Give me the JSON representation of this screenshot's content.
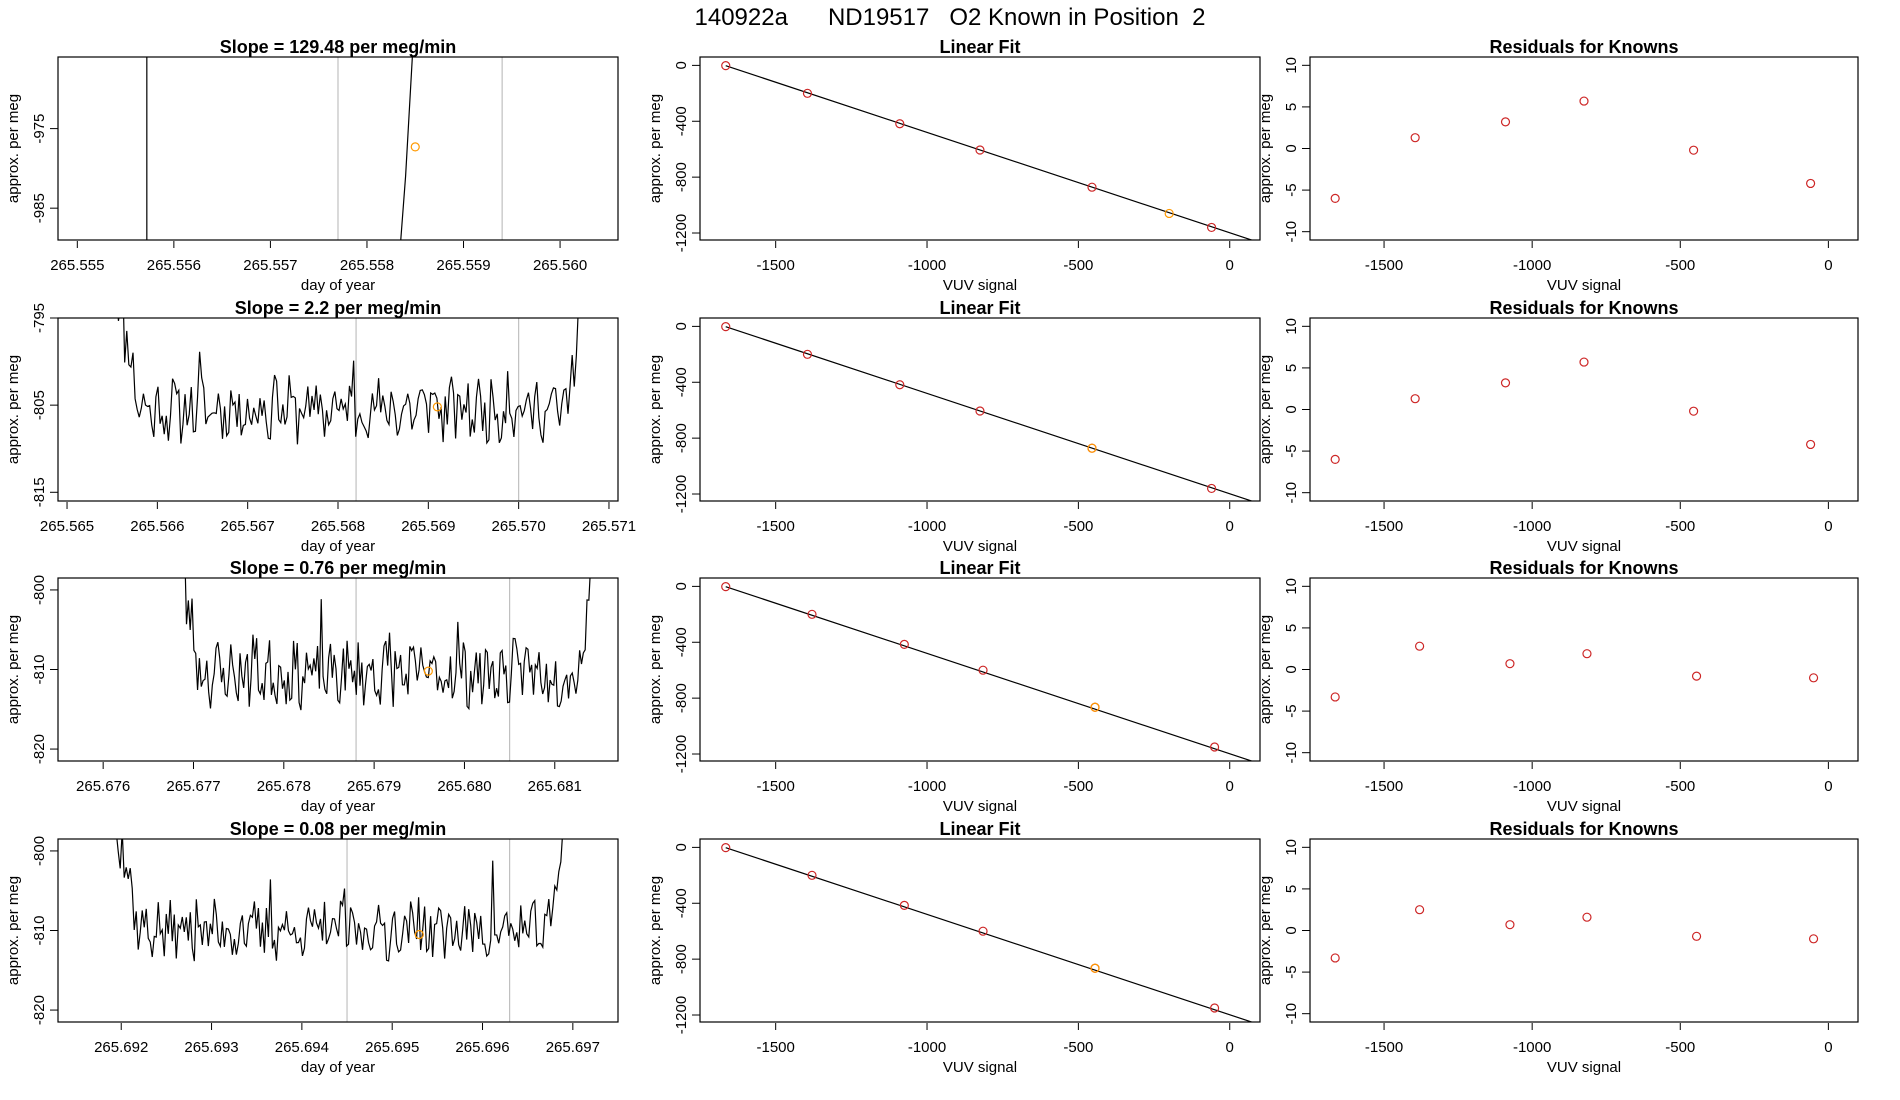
{
  "title": "140922a      ND19517   O2 Known in Position  2",
  "colors": {
    "line": "#000000",
    "known_point": "#cd2626",
    "sample_point": "#ff9900",
    "marker_line": "#c0c0c0"
  },
  "chart_data": [
    {
      "type": "line",
      "row": 0,
      "panel": "time",
      "title": "Slope =  129.48  per meg/min",
      "xlabel": "day of year",
      "ylabel": "approx. per meg",
      "xlim": [
        265.5548,
        265.5606
      ],
      "ylim": [
        -989,
        -966
      ],
      "xticks": [
        "265.555",
        "265.556",
        "265.557",
        "265.558",
        "265.559",
        "265.560"
      ],
      "yticks": [
        "-975",
        "-985"
      ],
      "vlines": [
        265.5577,
        265.5594
      ],
      "highlight_point": [
        265.5585,
        -977.3
      ],
      "segments": [
        [
          [
            265.55572,
            -989
          ],
          [
            265.55572,
            -966
          ]
        ],
        [
          [
            265.55835,
            -989
          ],
          [
            265.5584,
            -981
          ],
          [
            265.55847,
            -966
          ]
        ]
      ]
    },
    {
      "type": "scatter",
      "row": 0,
      "panel": "fit",
      "title": "Linear Fit",
      "xlabel": "VUV signal",
      "ylabel": "approx. per meg",
      "xlim": [
        -1750,
        100
      ],
      "ylim": [
        -1250,
        60
      ],
      "xticks": [
        "-1500",
        "-1000",
        "-500",
        "0"
      ],
      "yticks": [
        "0",
        "-400",
        "-800",
        "-1200"
      ],
      "fit_line": [
        [
          -1665,
          -2
        ],
        [
          100,
          -1270
        ]
      ],
      "points": [
        [
          -1665,
          -2
        ],
        [
          -1395,
          -200
        ],
        [
          -1090,
          -418
        ],
        [
          -825,
          -606
        ],
        [
          -455,
          -872
        ],
        [
          -60,
          -1160
        ]
      ],
      "highlight_point": [
        -200,
        -1060
      ]
    },
    {
      "type": "scatter",
      "row": 0,
      "panel": "residuals",
      "title": "Residuals for Knowns",
      "xlabel": "VUV signal",
      "ylabel": "approx. per meg",
      "xlim": [
        -1750,
        100
      ],
      "ylim": [
        -11,
        11
      ],
      "xticks": [
        "-1500",
        "-1000",
        "-500",
        "0"
      ],
      "yticks": [
        "10",
        "5",
        "0",
        "-5",
        "-10"
      ],
      "points": [
        [
          -1665,
          -6
        ],
        [
          -1395,
          1.3
        ],
        [
          -1090,
          3.2
        ],
        [
          -825,
          5.7
        ],
        [
          -455,
          -0.2
        ],
        [
          -60,
          -4.2
        ]
      ]
    },
    {
      "type": "line",
      "row": 1,
      "panel": "time",
      "title": "Slope =  2.2  per meg/min",
      "xlabel": "day of year",
      "ylabel": "approx. per meg",
      "xlim": [
        265.5649,
        265.5711
      ],
      "ylim": [
        -816,
        -795
      ],
      "xticks": [
        "265.565",
        "265.566",
        "265.567",
        "265.568",
        "265.569",
        "265.570",
        "265.571"
      ],
      "yticks": [
        "-795",
        "-805",
        "-815"
      ],
      "vlines": [
        265.5682,
        265.57
      ],
      "highlight_point": [
        265.5691,
        -805.2
      ],
      "series_seed": 11,
      "series_start": 265.5655,
      "series_end": 265.5708,
      "series_base": -805.5,
      "series_noise": 3
    },
    {
      "type": "scatter",
      "row": 1,
      "panel": "fit",
      "title": "Linear Fit",
      "xlabel": "VUV signal",
      "ylabel": "approx. per meg",
      "xlim": [
        -1750,
        100
      ],
      "ylim": [
        -1250,
        60
      ],
      "xticks": [
        "-1500",
        "-1000",
        "-500",
        "0"
      ],
      "yticks": [
        "0",
        "-400",
        "-800",
        "-1200"
      ],
      "fit_line": [
        [
          -1665,
          -2
        ],
        [
          100,
          -1270
        ]
      ],
      "points": [
        [
          -1665,
          -2
        ],
        [
          -1395,
          -200
        ],
        [
          -1090,
          -418
        ],
        [
          -825,
          -606
        ],
        [
          -455,
          -872
        ],
        [
          -60,
          -1160
        ]
      ],
      "highlight_point": [
        -455,
        -872
      ]
    },
    {
      "type": "scatter",
      "row": 1,
      "panel": "residuals",
      "title": "Residuals for Knowns",
      "xlabel": "VUV signal",
      "ylabel": "approx. per meg",
      "xlim": [
        -1750,
        100
      ],
      "ylim": [
        -11,
        11
      ],
      "xticks": [
        "-1500",
        "-1000",
        "-500",
        "0"
      ],
      "yticks": [
        "10",
        "5",
        "0",
        "-5",
        "-10"
      ],
      "points": [
        [
          -1665,
          -6
        ],
        [
          -1395,
          1.3
        ],
        [
          -1090,
          3.2
        ],
        [
          -825,
          5.7
        ],
        [
          -455,
          -0.2
        ],
        [
          -60,
          -4.2
        ]
      ]
    },
    {
      "type": "line",
      "row": 2,
      "panel": "time",
      "title": "Slope =  0.76  per meg/min",
      "xlabel": "day of year",
      "ylabel": "approx. per meg",
      "xlim": [
        265.6755,
        265.6817
      ],
      "ylim": [
        -821.5,
        -798.5
      ],
      "xticks": [
        "265.676",
        "265.677",
        "265.678",
        "265.679",
        "265.680",
        "265.681"
      ],
      "yticks": [
        "-800",
        "-810",
        "-820"
      ],
      "vlines": [
        265.6788,
        265.6805
      ],
      "highlight_point": [
        265.6796,
        -810.2
      ],
      "series_seed": 23,
      "series_start": 265.6768,
      "series_end": 265.6815,
      "series_base": -810.5,
      "series_noise": 3.5
    },
    {
      "type": "scatter",
      "row": 2,
      "panel": "fit",
      "title": "Linear Fit",
      "xlabel": "VUV signal",
      "ylabel": "approx. per meg",
      "xlim": [
        -1750,
        100
      ],
      "ylim": [
        -1250,
        60
      ],
      "xticks": [
        "-1500",
        "-1000",
        "-500",
        "0"
      ],
      "yticks": [
        "0",
        "-400",
        "-800",
        "-1200"
      ],
      "fit_line": [
        [
          -1665,
          -2
        ],
        [
          100,
          -1270
        ]
      ],
      "points": [
        [
          -1665,
          -2
        ],
        [
          -1380,
          -200
        ],
        [
          -1075,
          -415
        ],
        [
          -815,
          -600
        ],
        [
          -445,
          -865
        ],
        [
          -50,
          -1150
        ]
      ],
      "highlight_point": [
        -445,
        -865
      ]
    },
    {
      "type": "scatter",
      "row": 2,
      "panel": "residuals",
      "title": "Residuals for Knowns",
      "xlabel": "VUV signal",
      "ylabel": "approx. per meg",
      "xlim": [
        -1750,
        100
      ],
      "ylim": [
        -11,
        11
      ],
      "xticks": [
        "-1500",
        "-1000",
        "-500",
        "0"
      ],
      "yticks": [
        "10",
        "5",
        "0",
        "-5",
        "-10"
      ],
      "points": [
        [
          -1665,
          -3.3
        ],
        [
          -1380,
          2.8
        ],
        [
          -1075,
          0.7
        ],
        [
          -815,
          1.9
        ],
        [
          -445,
          -0.8
        ],
        [
          -50,
          -1
        ]
      ]
    },
    {
      "type": "line",
      "row": 3,
      "panel": "time",
      "title": "Slope =  0.08  per meg/min",
      "xlabel": "day of year",
      "ylabel": "approx. per meg",
      "xlim": [
        265.6913,
        265.6975
      ],
      "ylim": [
        -821.5,
        -798.5
      ],
      "xticks": [
        "265.692",
        "265.693",
        "265.694",
        "265.695",
        "265.696",
        "265.697"
      ],
      "yticks": [
        "-800",
        "-810",
        "-820"
      ],
      "vlines": [
        265.6945,
        265.6963
      ],
      "highlight_point": [
        265.6953,
        -810.5
      ],
      "series_seed": 37,
      "series_start": 265.6919,
      "series_end": 265.697,
      "series_base": -810,
      "series_noise": 3
    },
    {
      "type": "scatter",
      "row": 3,
      "panel": "fit",
      "title": "Linear Fit",
      "xlabel": "VUV signal",
      "ylabel": "approx. per meg",
      "xlim": [
        -1750,
        100
      ],
      "ylim": [
        -1250,
        60
      ],
      "xticks": [
        "-1500",
        "-1000",
        "-500",
        "0"
      ],
      "yticks": [
        "0",
        "-400",
        "-800",
        "-1200"
      ],
      "fit_line": [
        [
          -1665,
          -2
        ],
        [
          100,
          -1270
        ]
      ],
      "points": [
        [
          -1665,
          -2
        ],
        [
          -1380,
          -200
        ],
        [
          -1075,
          -415
        ],
        [
          -815,
          -600
        ],
        [
          -445,
          -865
        ],
        [
          -50,
          -1150
        ]
      ],
      "highlight_point": [
        -445,
        -865
      ]
    },
    {
      "type": "scatter",
      "row": 3,
      "panel": "residuals",
      "title": "Residuals for Knowns",
      "xlabel": "VUV signal",
      "ylabel": "approx. per meg",
      "xlim": [
        -1750,
        100
      ],
      "ylim": [
        -11,
        11
      ],
      "xticks": [
        "-1500",
        "-1000",
        "-500",
        "0"
      ],
      "yticks": [
        "10",
        "5",
        "0",
        "-5",
        "-10"
      ],
      "points": [
        [
          -1665,
          -3.3
        ],
        [
          -1380,
          2.5
        ],
        [
          -1075,
          0.7
        ],
        [
          -815,
          1.6
        ],
        [
          -445,
          -0.7
        ],
        [
          -50,
          -1
        ]
      ]
    }
  ]
}
